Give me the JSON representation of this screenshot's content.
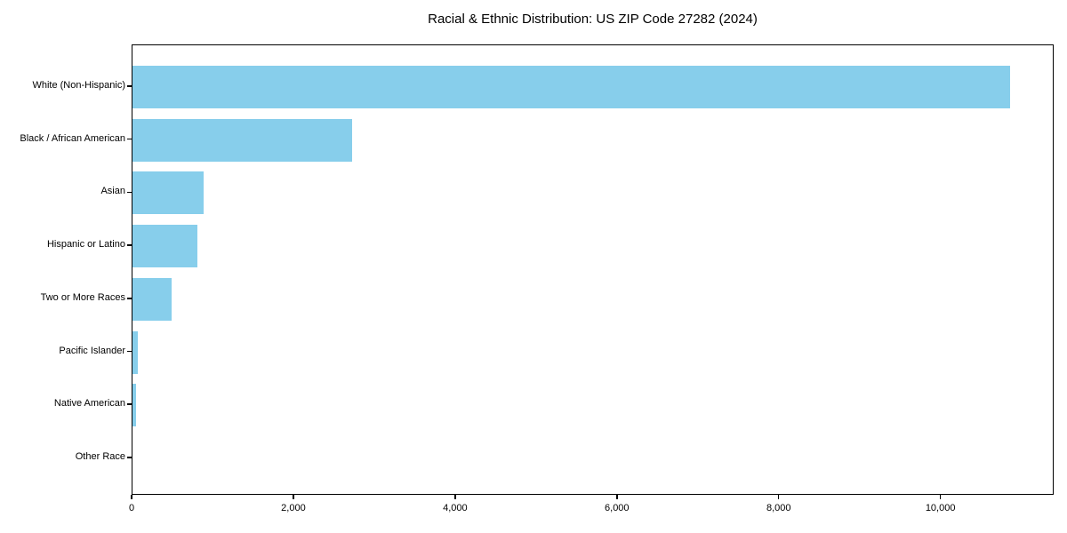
{
  "chart_data": {
    "type": "bar",
    "orientation": "horizontal",
    "title": "Racial & Ethnic Distribution: US ZIP Code 27282 (2024)",
    "categories": [
      "White (Non-Hispanic)",
      "Black / African American",
      "Asian",
      "Hispanic or Latino",
      "Two or More Races",
      "Pacific Islander",
      "Native American",
      "Other Race"
    ],
    "values": [
      10880,
      2720,
      880,
      800,
      490,
      65,
      40,
      0
    ],
    "xlabel": "",
    "ylabel": "",
    "xlim": [
      0,
      11400
    ],
    "xticks": [
      0,
      2000,
      4000,
      6000,
      8000,
      10000
    ],
    "xtick_labels": [
      "0",
      "2,000",
      "4,000",
      "6,000",
      "8,000",
      "10,000"
    ],
    "bar_color": "#87CEEB",
    "background_color": "#ffffff",
    "axis_color": "#000000",
    "grid": false,
    "legend": null
  }
}
